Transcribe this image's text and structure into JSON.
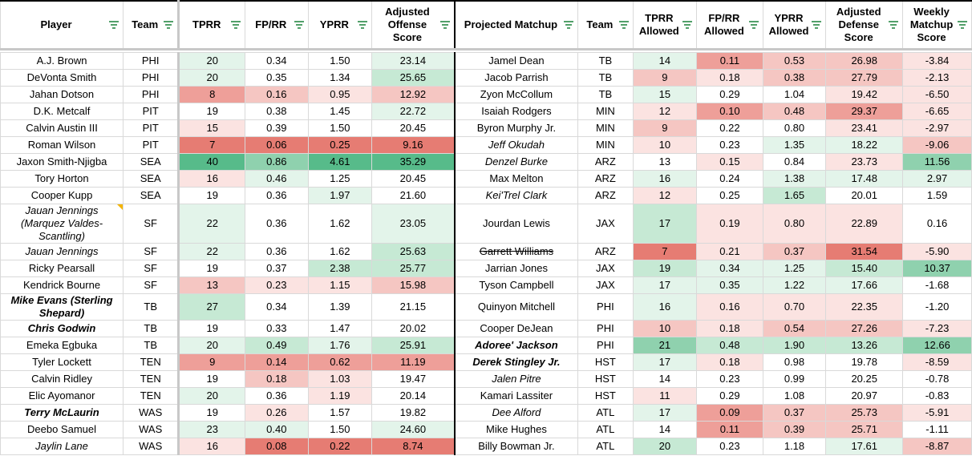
{
  "headers": {
    "player": "Player",
    "team": "Team",
    "tprr": "TPRR",
    "fprr": "FP/RR",
    "yprr": "YPRR",
    "adj_off": "Adjusted Offense Score",
    "matchup": "Projected Matchup",
    "team2": "Team",
    "tprr_allowed": "TPRR Allowed",
    "fprr_allowed": "FP/RR Allowed",
    "yprr_allowed": "YPRR Allowed",
    "adj_def": "Adjusted Defense Score",
    "weekly": "Weekly Matchup Score"
  },
  "colors": {
    "green_dark": "#57bb8a",
    "green_mid": "#8fd1ae",
    "green_light": "#c6e9d4",
    "green_pale": "#e3f4ea",
    "red_dark": "#e67c73",
    "red_mid": "#ee9f99",
    "red_light": "#f5c6c2",
    "red_pale": "#fbe3e1",
    "neutral": "#ffffff"
  },
  "rows": [
    {
      "player": "A.J. Brown",
      "team": "PHI",
      "tprr": "20",
      "fprr": "0.34",
      "yprr": "1.50",
      "adj_off": "23.14",
      "matchup": "Jamel Dean",
      "team2": "TB",
      "tprr_a": "14",
      "fprr_a": "0.11",
      "yprr_a": "0.53",
      "adj_def": "26.98",
      "weekly": "-3.84"
    },
    {
      "player": "DeVonta Smith",
      "team": "PHI",
      "tprr": "20",
      "fprr": "0.35",
      "yprr": "1.34",
      "adj_off": "25.65",
      "matchup": "Jacob Parrish",
      "team2": "TB",
      "tprr_a": "9",
      "fprr_a": "0.18",
      "yprr_a": "0.38",
      "adj_def": "27.79",
      "weekly": "-2.13"
    },
    {
      "player": "Jahan Dotson",
      "team": "PHI",
      "tprr": "8",
      "fprr": "0.16",
      "yprr": "0.95",
      "adj_off": "12.92",
      "matchup": "Zyon McCollum",
      "team2": "TB",
      "tprr_a": "15",
      "fprr_a": "0.29",
      "yprr_a": "1.04",
      "adj_def": "19.42",
      "weekly": "-6.50"
    },
    {
      "player": "D.K. Metcalf",
      "team": "PIT",
      "tprr": "19",
      "fprr": "0.38",
      "yprr": "1.45",
      "adj_off": "22.72",
      "matchup": "Isaiah Rodgers",
      "team2": "MIN",
      "tprr_a": "12",
      "fprr_a": "0.10",
      "yprr_a": "0.48",
      "adj_def": "29.37",
      "weekly": "-6.65"
    },
    {
      "player": "Calvin Austin III",
      "team": "PIT",
      "tprr": "15",
      "fprr": "0.39",
      "yprr": "1.50",
      "adj_off": "20.45",
      "matchup": "Byron Murphy Jr.",
      "team2": "MIN",
      "tprr_a": "9",
      "fprr_a": "0.22",
      "yprr_a": "0.80",
      "adj_def": "23.41",
      "weekly": "-2.97"
    },
    {
      "player": "Roman Wilson",
      "team": "PIT",
      "tprr": "7",
      "fprr": "0.06",
      "yprr": "0.25",
      "adj_off": "9.16",
      "matchup": "Jeff Okudah",
      "team2": "MIN",
      "tprr_a": "10",
      "fprr_a": "0.23",
      "yprr_a": "1.35",
      "adj_def": "18.22",
      "weekly": "-9.06"
    },
    {
      "player": "Jaxon Smith-Njigba",
      "team": "SEA",
      "tprr": "40",
      "fprr": "0.86",
      "yprr": "4.61",
      "adj_off": "35.29",
      "matchup": "Denzel Burke",
      "team2": "ARZ",
      "tprr_a": "13",
      "fprr_a": "0.15",
      "yprr_a": "0.84",
      "adj_def": "23.73",
      "weekly": "11.56"
    },
    {
      "player": "Tory Horton",
      "team": "SEA",
      "tprr": "16",
      "fprr": "0.46",
      "yprr": "1.25",
      "adj_off": "20.45",
      "matchup": "Max Melton",
      "team2": "ARZ",
      "tprr_a": "16",
      "fprr_a": "0.24",
      "yprr_a": "1.38",
      "adj_def": "17.48",
      "weekly": "2.97"
    },
    {
      "player": "Cooper Kupp",
      "team": "SEA",
      "tprr": "19",
      "fprr": "0.36",
      "yprr": "1.97",
      "adj_off": "21.60",
      "matchup": "Kei'Trel Clark",
      "team2": "ARZ",
      "tprr_a": "12",
      "fprr_a": "0.25",
      "yprr_a": "1.65",
      "adj_def": "20.01",
      "weekly": "1.59"
    },
    {
      "player": "Jauan Jennings (Marquez Valdes-Scantling)",
      "team": "SF",
      "tprr": "22",
      "fprr": "0.36",
      "yprr": "1.62",
      "adj_off": "23.05",
      "matchup": "Jourdan Lewis",
      "team2": "JAX",
      "tprr_a": "17",
      "fprr_a": "0.19",
      "yprr_a": "0.80",
      "adj_def": "22.89",
      "weekly": "0.16"
    },
    {
      "player": "Jauan Jennings",
      "team": "SF",
      "tprr": "22",
      "fprr": "0.36",
      "yprr": "1.62",
      "adj_off": "25.63",
      "matchup": "Garrett Williams",
      "team2": "ARZ",
      "tprr_a": "7",
      "fprr_a": "0.21",
      "yprr_a": "0.37",
      "adj_def": "31.54",
      "weekly": "-5.90"
    },
    {
      "player": "Ricky Pearsall",
      "team": "SF",
      "tprr": "19",
      "fprr": "0.37",
      "yprr": "2.38",
      "adj_off": "25.77",
      "matchup": "Jarrian Jones",
      "team2": "JAX",
      "tprr_a": "19",
      "fprr_a": "0.34",
      "yprr_a": "1.25",
      "adj_def": "15.40",
      "weekly": "10.37"
    },
    {
      "player": "Kendrick Bourne",
      "team": "SF",
      "tprr": "13",
      "fprr": "0.23",
      "yprr": "1.15",
      "adj_off": "15.98",
      "matchup": "Tyson Campbell",
      "team2": "JAX",
      "tprr_a": "17",
      "fprr_a": "0.35",
      "yprr_a": "1.22",
      "adj_def": "17.66",
      "weekly": "-1.68"
    },
    {
      "player": "Mike Evans (Sterling Shepard)",
      "team": "TB",
      "tprr": "27",
      "fprr": "0.34",
      "yprr": "1.39",
      "adj_off": "21.15",
      "matchup": "Quinyon Mitchell",
      "team2": "PHI",
      "tprr_a": "16",
      "fprr_a": "0.16",
      "yprr_a": "0.70",
      "adj_def": "22.35",
      "weekly": "-1.20"
    },
    {
      "player": "Chris Godwin",
      "team": "TB",
      "tprr": "19",
      "fprr": "0.33",
      "yprr": "1.47",
      "adj_off": "20.02",
      "matchup": "Cooper DeJean",
      "team2": "PHI",
      "tprr_a": "10",
      "fprr_a": "0.18",
      "yprr_a": "0.54",
      "adj_def": "27.26",
      "weekly": "-7.23"
    },
    {
      "player": "Emeka Egbuka",
      "team": "TB",
      "tprr": "20",
      "fprr": "0.49",
      "yprr": "1.76",
      "adj_off": "25.91",
      "matchup": "Adoree' Jackson",
      "team2": "PHI",
      "tprr_a": "21",
      "fprr_a": "0.48",
      "yprr_a": "1.90",
      "adj_def": "13.26",
      "weekly": "12.66"
    },
    {
      "player": "Tyler Lockett",
      "team": "TEN",
      "tprr": "9",
      "fprr": "0.14",
      "yprr": "0.62",
      "adj_off": "11.19",
      "matchup": "Derek Stingley Jr.",
      "team2": "HST",
      "tprr_a": "17",
      "fprr_a": "0.18",
      "yprr_a": "0.98",
      "adj_def": "19.78",
      "weekly": "-8.59"
    },
    {
      "player": "Calvin Ridley",
      "team": "TEN",
      "tprr": "19",
      "fprr": "0.18",
      "yprr": "1.03",
      "adj_off": "19.47",
      "matchup": "Jalen Pitre",
      "team2": "HST",
      "tprr_a": "14",
      "fprr_a": "0.23",
      "yprr_a": "0.99",
      "adj_def": "20.25",
      "weekly": "-0.78"
    },
    {
      "player": "Elic Ayomanor",
      "team": "TEN",
      "tprr": "20",
      "fprr": "0.36",
      "yprr": "1.19",
      "adj_off": "20.14",
      "matchup": "Kamari Lassiter",
      "team2": "HST",
      "tprr_a": "11",
      "fprr_a": "0.29",
      "yprr_a": "1.08",
      "adj_def": "20.97",
      "weekly": "-0.83"
    },
    {
      "player": "Terry McLaurin",
      "team": "WAS",
      "tprr": "19",
      "fprr": "0.26",
      "yprr": "1.57",
      "adj_off": "19.82",
      "matchup": "Dee Alford",
      "team2": "ATL",
      "tprr_a": "17",
      "fprr_a": "0.09",
      "yprr_a": "0.37",
      "adj_def": "25.73",
      "weekly": "-5.91"
    },
    {
      "player": "Deebo Samuel",
      "team": "WAS",
      "tprr": "23",
      "fprr": "0.40",
      "yprr": "1.50",
      "adj_off": "24.60",
      "matchup": "Mike Hughes",
      "team2": "ATL",
      "tprr_a": "14",
      "fprr_a": "0.11",
      "yprr_a": "0.39",
      "adj_def": "25.71",
      "weekly": "-1.11"
    },
    {
      "player": "Jaylin Lane",
      "team": "WAS",
      "tprr": "16",
      "fprr": "0.08",
      "yprr": "0.22",
      "adj_off": "8.74",
      "matchup": "Billy Bowman Jr.",
      "team2": "ATL",
      "tprr_a": "20",
      "fprr_a": "0.23",
      "yprr_a": "1.18",
      "adj_def": "17.61",
      "weekly": "-8.87"
    }
  ]
}
